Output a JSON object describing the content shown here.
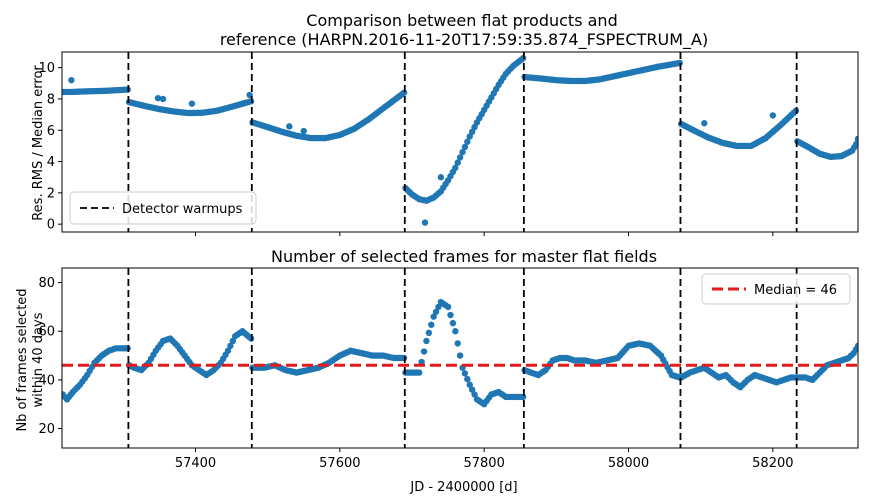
{
  "chart_data": [
    {
      "type": "scatter",
      "title_line1": "Comparison between flat products and",
      "title_line2": "reference (HARPN.2016-11-20T17:59:35.874_FSPECTRUM_A)",
      "xlabel": "",
      "ylabel": "Res. RMS / Median error",
      "xlim": [
        57215,
        58318
      ],
      "ylim": [
        -0.5,
        11
      ],
      "yticks": [
        0,
        2,
        4,
        6,
        8,
        10
      ],
      "marker_color": "#1f77b4",
      "warmup_lines": [
        57307,
        57478,
        57690,
        57855,
        58072,
        58233
      ],
      "legend": {
        "label": "Detector warmups",
        "position": "lower-left"
      },
      "segments": [
        {
          "x": [
            57217,
            57230,
            57245,
            57260,
            57275,
            57290,
            57306
          ],
          "y": [
            8.45,
            8.45,
            8.48,
            8.5,
            8.52,
            8.56,
            8.6
          ]
        },
        {
          "x": [
            57308,
            57330,
            57350,
            57370,
            57390,
            57410,
            57430,
            57450,
            57477
          ],
          "y": [
            7.8,
            7.55,
            7.35,
            7.2,
            7.1,
            7.12,
            7.25,
            7.5,
            7.85
          ]
        },
        {
          "x": [
            57479,
            57500,
            57520,
            57540,
            57560,
            57580,
            57600,
            57620,
            57640,
            57660,
            57689
          ],
          "y": [
            6.5,
            6.2,
            5.9,
            5.65,
            5.5,
            5.5,
            5.7,
            6.1,
            6.7,
            7.4,
            8.4
          ]
        },
        {
          "x": [
            57691,
            57700,
            57710,
            57720,
            57730,
            57740,
            57750,
            57760,
            57770,
            57780,
            57790,
            57800,
            57810,
            57820,
            57830,
            57840,
            57854
          ],
          "y": [
            2.3,
            1.9,
            1.6,
            1.5,
            1.7,
            2.1,
            2.8,
            3.6,
            4.6,
            5.6,
            6.5,
            7.3,
            8.1,
            8.9,
            9.6,
            10.1,
            10.6
          ]
        },
        {
          "x": [
            57856,
            57880,
            57900,
            57920,
            57940,
            57960,
            57980,
            58000,
            58020,
            58040,
            58071
          ],
          "y": [
            9.4,
            9.3,
            9.2,
            9.15,
            9.15,
            9.25,
            9.45,
            9.65,
            9.85,
            10.05,
            10.3
          ]
        },
        {
          "x": [
            58073,
            58090,
            58110,
            58130,
            58150,
            58170,
            58190,
            58210,
            58232
          ],
          "y": [
            6.4,
            6.0,
            5.55,
            5.2,
            5.0,
            5.0,
            5.5,
            6.3,
            7.25
          ]
        },
        {
          "x": [
            58234,
            58250,
            58265,
            58280,
            58295,
            58310,
            58318
          ],
          "y": [
            5.3,
            4.9,
            4.5,
            4.3,
            4.35,
            4.7,
            5.3
          ]
        }
      ],
      "outliers": [
        {
          "x": 57228,
          "y": 9.2
        },
        {
          "x": 57348,
          "y": 8.05
        },
        {
          "x": 57355,
          "y": 8.0
        },
        {
          "x": 57395,
          "y": 7.7
        },
        {
          "x": 57475,
          "y": 8.25
        },
        {
          "x": 57530,
          "y": 6.25
        },
        {
          "x": 57550,
          "y": 5.95
        },
        {
          "x": 57718,
          "y": 0.1
        },
        {
          "x": 57740,
          "y": 3.0
        },
        {
          "x": 58105,
          "y": 6.45
        },
        {
          "x": 58200,
          "y": 6.95
        },
        {
          "x": 58318,
          "y": 5.45
        }
      ]
    },
    {
      "type": "scatter",
      "title": "Number of selected frames for master flat fields",
      "xlabel": "JD - 2400000 [d]",
      "ylabel_line1": "Nb of frames selected",
      "ylabel_line2": "within 40 days",
      "xlim": [
        57215,
        58318
      ],
      "ylim": [
        12,
        86
      ],
      "yticks": [
        20,
        40,
        60,
        80
      ],
      "xticks": [
        57400,
        57600,
        57800,
        58000,
        58200
      ],
      "marker_color": "#1f77b4",
      "warmup_lines": [
        57307,
        57478,
        57690,
        57855,
        58072,
        58233
      ],
      "median": 46,
      "median_color": "#e41a1c",
      "legend": {
        "label": "Median = 46",
        "position": "upper-right"
      },
      "segments": [
        {
          "x": [
            57216,
            57222,
            57230,
            57240,
            57250,
            57260,
            57270,
            57280,
            57290,
            57300,
            57306
          ],
          "y": [
            34,
            32,
            35,
            38,
            42,
            47,
            50,
            52,
            53,
            53,
            53
          ]
        },
        {
          "x": [
            57308,
            57315,
            57325,
            57335,
            57345,
            57355,
            57365,
            57375,
            57385,
            57395,
            57405,
            57415,
            57425,
            57435,
            57445,
            57455,
            57465,
            57477
          ],
          "y": [
            46,
            45,
            44,
            47,
            52,
            56,
            57,
            54,
            50,
            46,
            44,
            42,
            44,
            47,
            52,
            58,
            60,
            57
          ]
        },
        {
          "x": [
            57479,
            57495,
            57510,
            57525,
            57540,
            57555,
            57570,
            57585,
            57600,
            57615,
            57630,
            57645,
            57660,
            57675,
            57689
          ],
          "y": [
            45,
            45,
            46,
            44,
            43,
            44,
            45,
            47,
            50,
            52,
            51,
            50,
            50,
            49,
            49
          ]
        },
        {
          "x": [
            57691,
            57700,
            57710,
            57720,
            57730,
            57740,
            57750,
            57760,
            57770,
            57780,
            57790,
            57800,
            57810,
            57820,
            57830,
            57840,
            57854
          ],
          "y": [
            43,
            43,
            43,
            56,
            66,
            72,
            70,
            60,
            45,
            38,
            32,
            30,
            34,
            35,
            33,
            33,
            33
          ]
        },
        {
          "x": [
            57856,
            57865,
            57875,
            57885,
            57895,
            57905,
            57915,
            57925,
            57940,
            57955,
            57970,
            57985,
            58000,
            58015,
            58030,
            58045,
            58060,
            58071
          ],
          "y": [
            44,
            43,
            42,
            44,
            48,
            49,
            49,
            48,
            48,
            47,
            48,
            49,
            54,
            55,
            54,
            50,
            42,
            41
          ]
        },
        {
          "x": [
            58073,
            58085,
            58095,
            58105,
            58115,
            58125,
            58135,
            58145,
            58155,
            58165,
            58175,
            58185,
            58195,
            58205,
            58215,
            58225,
            58232
          ],
          "y": [
            41,
            43,
            44,
            45,
            43,
            41,
            42,
            39,
            37,
            40,
            42,
            41,
            40,
            39,
            40,
            41,
            41
          ]
        },
        {
          "x": [
            58234,
            58245,
            58255,
            58265,
            58275,
            58285,
            58295,
            58305,
            58312,
            58318
          ],
          "y": [
            41,
            41,
            40,
            43,
            46,
            47,
            48,
            49,
            51,
            54
          ]
        }
      ],
      "outliers": []
    }
  ]
}
